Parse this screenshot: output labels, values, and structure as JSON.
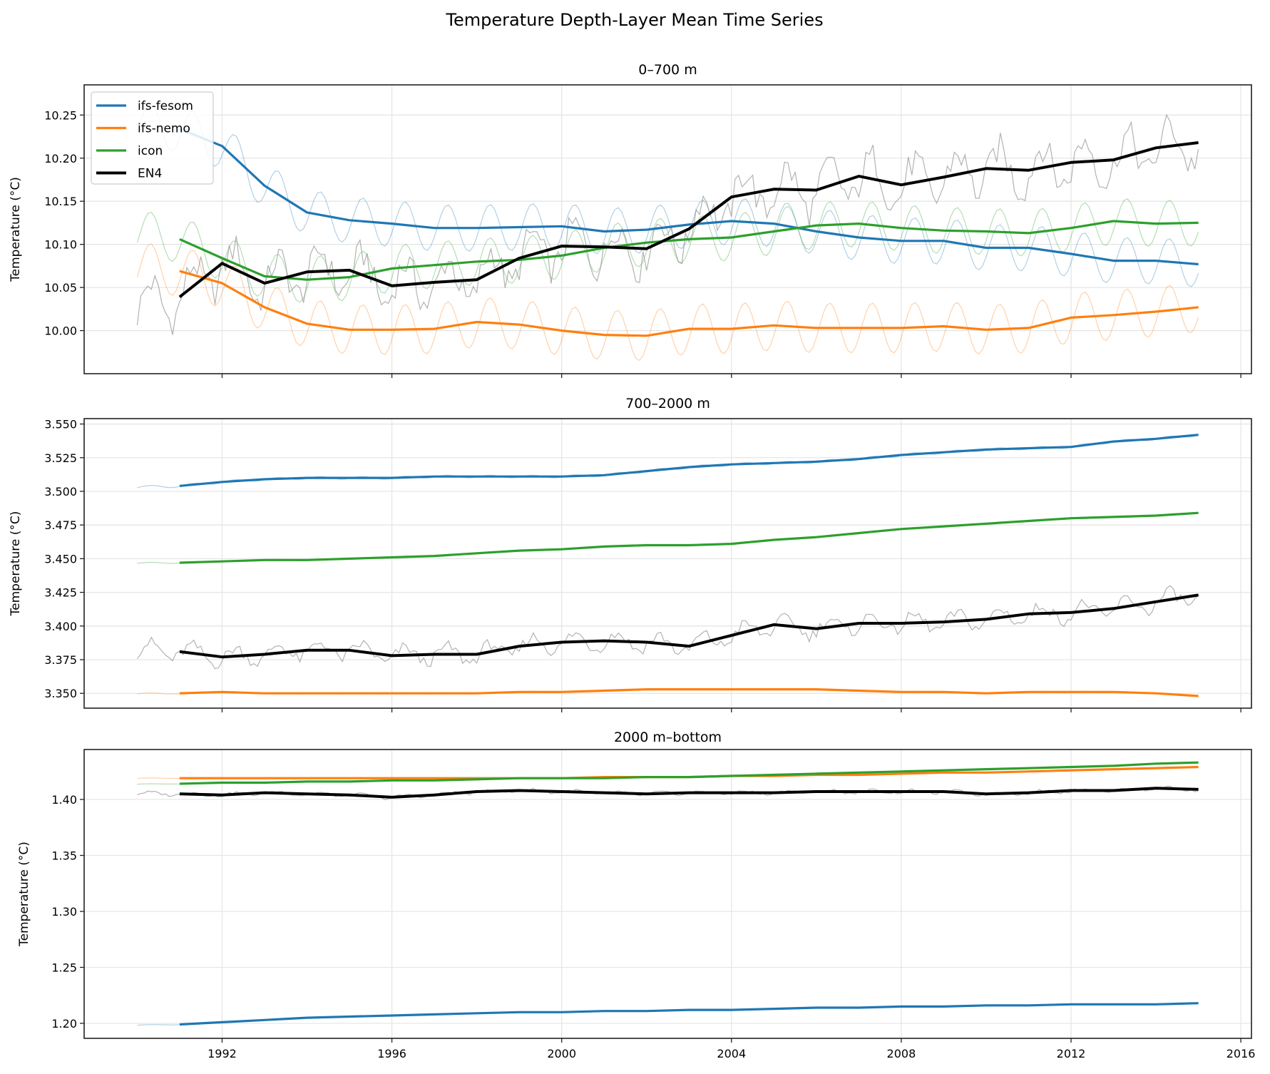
{
  "figure_title": "Temperature Depth-Layer Mean Time Series",
  "legend": {
    "placement": "upper-left",
    "entries": [
      "ifs-fesom",
      "ifs-nemo",
      "icon",
      "EN4"
    ]
  },
  "colors": {
    "ifs-fesom": "#1f77b4",
    "ifs-nemo": "#ff7f0e",
    "icon": "#2ca02c",
    "EN4": "#000000"
  },
  "chart_data": [
    {
      "type": "line",
      "title": "0–700 m",
      "xlabel": "",
      "ylabel": "Temperature (°C)",
      "xlim": [
        1988.75,
        2016.25
      ],
      "ylim": [
        9.95,
        10.285
      ],
      "xticks": [
        "1992",
        "1996",
        "2000",
        "2004",
        "2008",
        "2012",
        "2016"
      ],
      "xticks_labeled": false,
      "yticks": [
        "10.00",
        "10.05",
        "10.10",
        "10.15",
        "10.20",
        "10.25"
      ],
      "grid": true,
      "x": [
        1991,
        1992,
        1993,
        1994,
        1995,
        1996,
        1997,
        1998,
        1999,
        2000,
        2001,
        2002,
        2003,
        2004,
        2005,
        2006,
        2007,
        2008,
        2009,
        2010,
        2011,
        2012,
        2013,
        2014,
        2015
      ],
      "series": [
        {
          "name": "ifs-fesom",
          "values": [
            10.234,
            10.214,
            10.168,
            10.137,
            10.128,
            10.124,
            10.119,
            10.119,
            10.12,
            10.121,
            10.115,
            10.117,
            10.123,
            10.127,
            10.124,
            10.115,
            10.108,
            10.104,
            10.104,
            10.096,
            10.096,
            10.089,
            10.081,
            10.081,
            10.077
          ],
          "monthly_seasonal_amplitude": 0.027
        },
        {
          "name": "ifs-nemo",
          "values": [
            10.069,
            10.055,
            10.027,
            10.008,
            10.001,
            10.001,
            10.002,
            10.01,
            10.007,
            10.0,
            9.995,
            9.994,
            10.002,
            10.002,
            10.006,
            10.003,
            10.003,
            10.003,
            10.005,
            10.001,
            10.003,
            10.015,
            10.018,
            10.022,
            10.027
          ],
          "monthly_seasonal_amplitude": 0.029
        },
        {
          "name": "icon",
          "values": [
            10.106,
            10.084,
            10.063,
            10.059,
            10.062,
            10.072,
            10.076,
            10.08,
            10.082,
            10.087,
            10.096,
            10.102,
            10.106,
            10.108,
            10.115,
            10.122,
            10.124,
            10.119,
            10.116,
            10.115,
            10.113,
            10.119,
            10.127,
            10.124,
            10.125
          ],
          "monthly_seasonal_amplitude": 0.027
        },
        {
          "name": "EN4",
          "values": [
            10.039,
            10.078,
            10.055,
            10.068,
            10.07,
            10.052,
            10.056,
            10.059,
            10.084,
            10.098,
            10.097,
            10.095,
            10.118,
            10.155,
            10.164,
            10.163,
            10.179,
            10.169,
            10.178,
            10.188,
            10.186,
            10.195,
            10.198,
            10.212,
            10.218
          ],
          "monthly_seasonal_amplitude": 0.025
        }
      ]
    },
    {
      "type": "line",
      "title": "700–2000 m",
      "xlabel": "",
      "ylabel": "Temperature (°C)",
      "xlim": [
        1988.75,
        2016.25
      ],
      "ylim": [
        3.339,
        3.554
      ],
      "xticks": [
        "1992",
        "1996",
        "2000",
        "2004",
        "2008",
        "2012",
        "2016"
      ],
      "xticks_labeled": false,
      "yticks": [
        "3.350",
        "3.375",
        "3.400",
        "3.425",
        "3.450",
        "3.475",
        "3.500",
        "3.525",
        "3.550"
      ],
      "grid": true,
      "x": [
        1991,
        1992,
        1993,
        1994,
        1995,
        1996,
        1997,
        1998,
        1999,
        2000,
        2001,
        2002,
        2003,
        2004,
        2005,
        2006,
        2007,
        2008,
        2009,
        2010,
        2011,
        2012,
        2013,
        2014,
        2015
      ],
      "series": [
        {
          "name": "ifs-fesom",
          "values": [
            3.504,
            3.507,
            3.509,
            3.51,
            3.51,
            3.51,
            3.511,
            3.511,
            3.511,
            3.511,
            3.512,
            3.515,
            3.518,
            3.52,
            3.521,
            3.522,
            3.524,
            3.527,
            3.529,
            3.531,
            3.532,
            3.533,
            3.537,
            3.539,
            3.542
          ],
          "monthly_seasonal_amplitude": 0.001
        },
        {
          "name": "ifs-nemo",
          "values": [
            3.35,
            3.351,
            3.35,
            3.35,
            3.35,
            3.35,
            3.35,
            3.35,
            3.351,
            3.351,
            3.352,
            3.353,
            3.353,
            3.353,
            3.353,
            3.353,
            3.352,
            3.351,
            3.351,
            3.35,
            3.351,
            3.351,
            3.351,
            3.35,
            3.348
          ],
          "monthly_seasonal_amplitude": 0.0005
        },
        {
          "name": "icon",
          "values": [
            3.447,
            3.448,
            3.449,
            3.449,
            3.45,
            3.451,
            3.452,
            3.454,
            3.456,
            3.457,
            3.459,
            3.46,
            3.46,
            3.461,
            3.464,
            3.466,
            3.469,
            3.472,
            3.474,
            3.476,
            3.478,
            3.48,
            3.481,
            3.482,
            3.484
          ],
          "monthly_seasonal_amplitude": 0.0005
        },
        {
          "name": "EN4",
          "values": [
            3.381,
            3.377,
            3.379,
            3.382,
            3.382,
            3.378,
            3.379,
            3.379,
            3.385,
            3.388,
            3.389,
            3.388,
            3.385,
            3.393,
            3.401,
            3.398,
            3.402,
            3.402,
            3.403,
            3.405,
            3.409,
            3.41,
            3.413,
            3.418,
            3.423
          ],
          "monthly_seasonal_amplitude": 0.006
        }
      ]
    },
    {
      "type": "line",
      "title": "2000 m–bottom",
      "xlabel": "",
      "ylabel": "Temperature (°C)",
      "xlim": [
        1988.75,
        2016.25
      ],
      "ylim": [
        1.1866,
        1.4446
      ],
      "xticks": [
        "1992",
        "1996",
        "2000",
        "2004",
        "2008",
        "2012",
        "2016"
      ],
      "xticks_labeled": true,
      "yticks": [
        "1.20",
        "1.25",
        "1.30",
        "1.35",
        "1.40"
      ],
      "grid": true,
      "x": [
        1991,
        1992,
        1993,
        1994,
        1995,
        1996,
        1997,
        1998,
        1999,
        2000,
        2001,
        2002,
        2003,
        2004,
        2005,
        2006,
        2007,
        2008,
        2009,
        2010,
        2011,
        2012,
        2013,
        2014,
        2015
      ],
      "series": [
        {
          "name": "ifs-fesom",
          "values": [
            1.199,
            1.201,
            1.203,
            1.205,
            1.206,
            1.207,
            1.208,
            1.209,
            1.21,
            1.21,
            1.211,
            1.211,
            1.212,
            1.212,
            1.213,
            1.214,
            1.214,
            1.215,
            1.215,
            1.216,
            1.216,
            1.217,
            1.217,
            1.217,
            1.218
          ],
          "monthly_seasonal_amplitude": 0.0003
        },
        {
          "name": "ifs-nemo",
          "values": [
            1.419,
            1.419,
            1.419,
            1.419,
            1.419,
            1.419,
            1.419,
            1.419,
            1.419,
            1.419,
            1.42,
            1.42,
            1.42,
            1.421,
            1.421,
            1.422,
            1.422,
            1.423,
            1.424,
            1.424,
            1.425,
            1.426,
            1.427,
            1.428,
            1.429
          ],
          "monthly_seasonal_amplitude": 0.0002
        },
        {
          "name": "icon",
          "values": [
            1.414,
            1.415,
            1.415,
            1.416,
            1.416,
            1.417,
            1.417,
            1.418,
            1.419,
            1.419,
            1.419,
            1.42,
            1.42,
            1.421,
            1.422,
            1.423,
            1.424,
            1.425,
            1.426,
            1.427,
            1.428,
            1.429,
            1.43,
            1.432,
            1.433
          ],
          "monthly_seasonal_amplitude": 0.0002
        },
        {
          "name": "EN4",
          "values": [
            1.405,
            1.404,
            1.406,
            1.405,
            1.404,
            1.402,
            1.404,
            1.407,
            1.408,
            1.407,
            1.406,
            1.405,
            1.406,
            1.406,
            1.406,
            1.407,
            1.407,
            1.407,
            1.407,
            1.405,
            1.406,
            1.408,
            1.408,
            1.41,
            1.409
          ],
          "monthly_seasonal_amplitude": 0.0015
        }
      ]
    }
  ]
}
